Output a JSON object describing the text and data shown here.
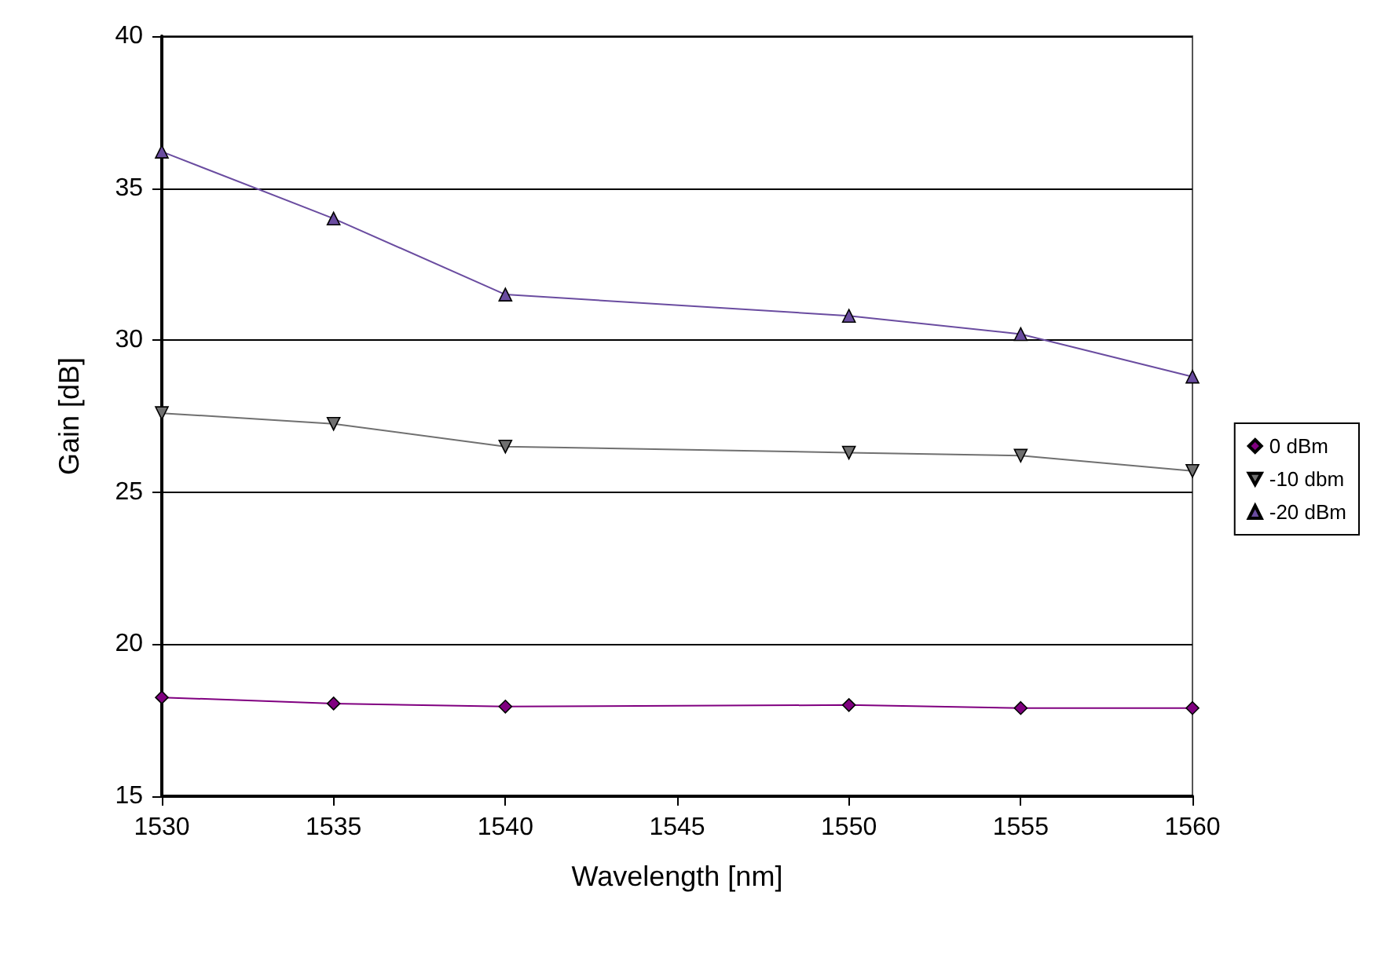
{
  "chart_data": {
    "type": "line",
    "xlabel": "Wavelength [nm]",
    "ylabel": "Gain [dB]",
    "x": [
      1530,
      1535,
      1540,
      1550,
      1555,
      1560
    ],
    "series": [
      {
        "name": "0 dBm",
        "color": "#800080",
        "marker": "diamond",
        "values": [
          18.25,
          18.05,
          17.95,
          18.0,
          17.9,
          17.9
        ]
      },
      {
        "name": "-10 dbm",
        "color": "#707070",
        "marker": "triangle-down",
        "values": [
          27.6,
          27.25,
          26.5,
          26.3,
          26.2,
          25.7
        ]
      },
      {
        "name": "-20 dBm",
        "color": "#6a4ca0",
        "marker": "triangle",
        "values": [
          36.2,
          34.0,
          31.5,
          30.8,
          30.2,
          28.8
        ]
      }
    ],
    "xlim": [
      1530,
      1560
    ],
    "xticks": [
      1530,
      1535,
      1540,
      1545,
      1550,
      1555,
      1560
    ],
    "ylim": [
      15,
      40
    ],
    "yticks": [
      15,
      20,
      25,
      30,
      35,
      40
    ],
    "grid": "y",
    "legend": "right",
    "line_style": "solid"
  }
}
